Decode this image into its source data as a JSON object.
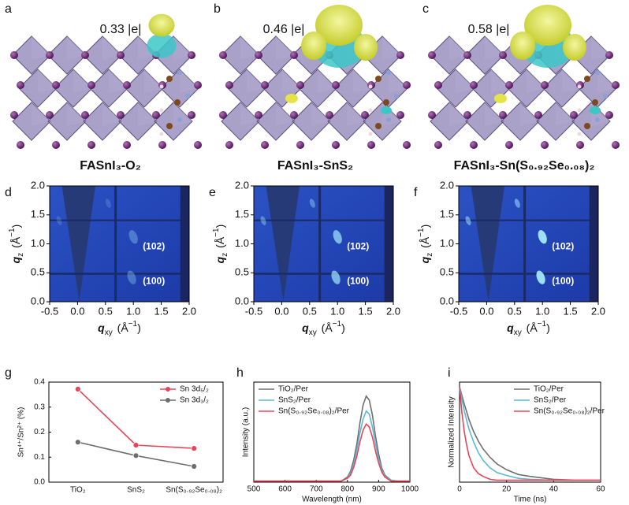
{
  "structures": [
    {
      "label": "a",
      "charge": "0.33 |e|",
      "name": "FASnI₃-O₂"
    },
    {
      "label": "b",
      "charge": "0.46 |e|",
      "name": "FASnI₃-SnS₂"
    },
    {
      "label": "c",
      "charge": "0.58 |e|",
      "name": "FASnI₃-Sn(S₀.₉₂Se₀.₀₈)₂"
    }
  ],
  "chart_data": [
    {
      "type": "heatmap",
      "label": "d",
      "xlabel": [
        "q",
        "xy",
        " (Å",
        "−1",
        ")"
      ],
      "ylabel": [
        "q",
        "z",
        " (Å",
        "−1",
        ")"
      ],
      "xlim": [
        -0.5,
        2.0
      ],
      "xticks": [
        -0.5,
        {
          "value": 0,
          "label": "0.0"
        },
        0.5,
        {
          "value": 1,
          "label": "1.0"
        },
        1.5,
        {
          "value": 2,
          "label": "2.0"
        }
      ],
      "ylim": [
        0,
        2.0
      ],
      "yticks": [
        {
          "value": 0,
          "label": "0.0"
        },
        0.5,
        {
          "value": 1,
          "label": "1.0"
        },
        1.5,
        {
          "value": 2,
          "label": "2.0"
        }
      ],
      "annotations": [
        "(102)",
        "(100)"
      ]
    },
    {
      "type": "heatmap",
      "label": "e",
      "xlabel": [
        "q",
        "xy",
        " (Å",
        "−1",
        ")"
      ],
      "ylabel": [
        "q",
        "z",
        " (Å",
        "−1",
        ")"
      ],
      "xlim": [
        -0.5,
        2.0
      ],
      "xticks": [
        -0.5,
        {
          "value": 0,
          "label": "0.0"
        },
        0.5,
        {
          "value": 1,
          "label": "1.0"
        },
        1.5,
        {
          "value": 2,
          "label": "2.0"
        }
      ],
      "ylim": [
        0,
        2.0
      ],
      "yticks": [
        {
          "value": 0,
          "label": "0.0"
        },
        0.5,
        {
          "value": 1,
          "label": "1.0"
        },
        1.5,
        {
          "value": 2,
          "label": "2.0"
        }
      ],
      "annotations": [
        "(102)",
        "(100)"
      ]
    },
    {
      "type": "heatmap",
      "label": "f",
      "xlabel": [
        "q",
        "xy",
        " (Å",
        "−1",
        ")"
      ],
      "ylabel": [
        "q",
        "z",
        " (Å",
        "−1",
        ")"
      ],
      "xlim": [
        -0.5,
        2.0
      ],
      "xticks": [
        -0.5,
        {
          "value": 0,
          "label": "0.0"
        },
        0.5,
        {
          "value": 1,
          "label": "1.0"
        },
        1.5,
        {
          "value": 2,
          "label": "2.0"
        }
      ],
      "ylim": [
        0,
        2.0
      ],
      "yticks": [
        {
          "value": 0,
          "label": "0.0"
        },
        0.5,
        {
          "value": 1,
          "label": "1.0"
        },
        1.5,
        {
          "value": 2,
          "label": "2.0"
        }
      ],
      "annotations": [
        "(102)",
        "(100)"
      ]
    },
    {
      "type": "line",
      "label": "g",
      "ylabel": "Sn⁴⁺/Sn²⁺ (%)",
      "categories": [
        "TiO₂",
        "SnS₂",
        "Sn(S₀.₉₂Se₀.₀₈)₂"
      ],
      "series": [
        {
          "name": "Sn 3d₅/₂",
          "color": "#e8455a",
          "values": [
            0.372,
            0.148,
            0.135
          ]
        },
        {
          "name": "Sn 3d₃/₂",
          "color": "#6e6e6e",
          "values": [
            0.16,
            0.106,
            0.063
          ]
        }
      ],
      "ylim": [
        0,
        0.4
      ],
      "yticks": [
        {
          "value": 0,
          "label": "0.0"
        },
        0.1,
        0.2,
        0.3,
        0.4
      ],
      "legend": "upper right"
    },
    {
      "type": "line",
      "label": "h",
      "xlabel": "Wavelength (nm)",
      "ylabel": "Intensity (a.u.)",
      "x": [
        500,
        600,
        700,
        780,
        800,
        810,
        820,
        830,
        840,
        850,
        860,
        870,
        880,
        890,
        900,
        910,
        920,
        940,
        960,
        1000
      ],
      "series": [
        {
          "name": "TiO₂/Per",
          "color": "#707070",
          "values": [
            0.01,
            0.01,
            0.01,
            0.01,
            0.05,
            0.11,
            0.22,
            0.38,
            0.59,
            0.77,
            0.86,
            0.82,
            0.67,
            0.46,
            0.28,
            0.14,
            0.07,
            0.02,
            0.01,
            0.01
          ]
        },
        {
          "name": "SnS₂/Per",
          "color": "#5bb8d8",
          "values": [
            0.01,
            0.01,
            0.01,
            0.01,
            0.04,
            0.09,
            0.18,
            0.32,
            0.49,
            0.63,
            0.71,
            0.68,
            0.55,
            0.38,
            0.23,
            0.12,
            0.06,
            0.02,
            0.01,
            0.01
          ]
        },
        {
          "name": "Sn(S₀.₉₂Se₀.₀₈)₂/Per",
          "color": "#e8455a",
          "values": [
            0.01,
            0.01,
            0.01,
            0.01,
            0.04,
            0.07,
            0.15,
            0.26,
            0.4,
            0.52,
            0.58,
            0.55,
            0.45,
            0.31,
            0.19,
            0.1,
            0.05,
            0.01,
            0.01,
            0.01
          ]
        }
      ],
      "xlim": [
        500,
        1000
      ],
      "xticks": [
        500,
        600,
        700,
        800,
        900,
        1000
      ],
      "ylim": [
        0,
        1
      ],
      "legend": "upper left"
    },
    {
      "type": "line",
      "label": "i",
      "xlabel": "Time (ns)",
      "ylabel": "Normalized Intensity",
      "x": [
        0,
        1,
        2,
        3,
        4,
        6,
        8,
        10,
        13,
        16,
        20,
        25,
        30,
        40,
        50,
        60
      ],
      "series": [
        {
          "name": "TiO₂/Per",
          "color": "#707070",
          "values": [
            1.0,
            0.91,
            0.82,
            0.74,
            0.66,
            0.53,
            0.43,
            0.35,
            0.26,
            0.19,
            0.13,
            0.08,
            0.06,
            0.03,
            0.02,
            0.02
          ]
        },
        {
          "name": "SnS₂/Per",
          "color": "#5bb8d8",
          "values": [
            1.0,
            0.87,
            0.75,
            0.65,
            0.56,
            0.42,
            0.31,
            0.23,
            0.15,
            0.1,
            0.07,
            0.04,
            0.03,
            0.02,
            0.02,
            0.02
          ]
        },
        {
          "name": "Sn(S₀.₉₂Se₀.₀₈)₂/Per",
          "color": "#e8455a",
          "values": [
            1.0,
            0.73,
            0.53,
            0.39,
            0.28,
            0.15,
            0.09,
            0.06,
            0.03,
            0.02,
            0.02,
            0.02,
            0.02,
            0.02,
            0.02,
            0.02
          ]
        }
      ],
      "xlim": [
        0,
        60
      ],
      "xticks": [
        0,
        20,
        40,
        60
      ],
      "ylim": [
        0,
        1.05
      ],
      "legend": "upper right"
    }
  ]
}
